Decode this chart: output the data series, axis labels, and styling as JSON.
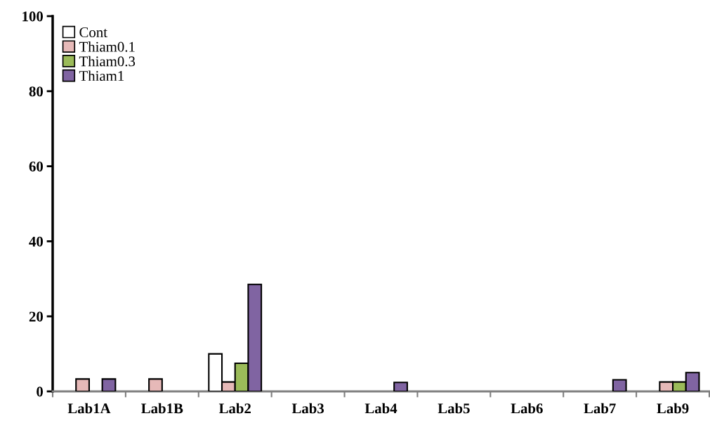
{
  "chart_data": {
    "type": "bar",
    "categories": [
      "Lab1A",
      "Lab1B",
      "Lab2",
      "Lab3",
      "Lab4",
      "Lab5",
      "Lab6",
      "Lab7",
      "Lab9"
    ],
    "series": [
      {
        "name": "Cont",
        "color": "#ffffff",
        "values": [
          0,
          0,
          10,
          0,
          0,
          0,
          0,
          0,
          0
        ]
      },
      {
        "name": "Thiam0.1",
        "color": "#e6b9b8",
        "values": [
          3.3,
          3.3,
          2.5,
          0,
          0,
          0,
          0,
          0,
          2.5
        ]
      },
      {
        "name": "Thiam0.3",
        "color": "#9bbb59",
        "values": [
          0,
          0,
          7.5,
          0,
          0,
          0,
          0,
          0,
          2.5
        ]
      },
      {
        "name": "Thiam1",
        "color": "#8064a2",
        "values": [
          3.3,
          0,
          28.5,
          0,
          2.4,
          0,
          0,
          3.1,
          5
        ]
      }
    ],
    "ylim": [
      0,
      100
    ],
    "yticks": [
      0,
      20,
      40,
      60,
      80,
      100
    ],
    "grid": false,
    "legend": "top left"
  }
}
